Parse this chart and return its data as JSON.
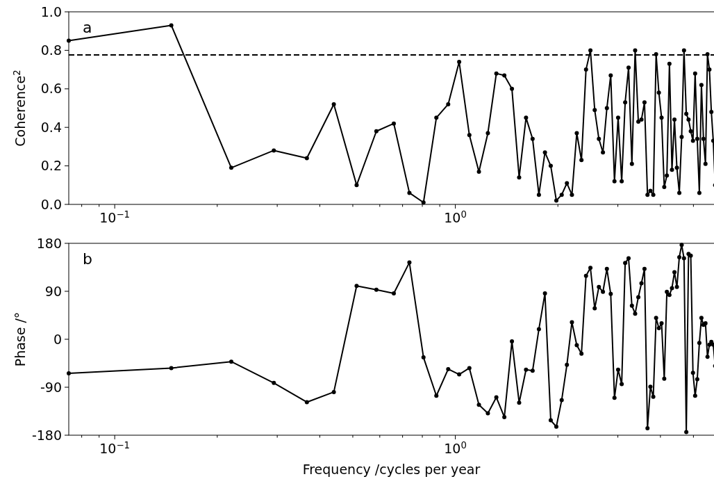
{
  "chart_data": [
    {
      "type": "line",
      "ylabel": "Coherence$^{2}$",
      "annotations": [
        "a"
      ],
      "log": "x",
      "grid": false,
      "marker": "circle",
      "line_style": "solid",
      "x": [
        0.0733,
        0.1466,
        0.2199,
        0.2932,
        0.3665,
        0.4398,
        0.5131,
        0.5864,
        0.6597,
        0.733,
        0.8063,
        0.8796,
        0.9529,
        1.0262,
        1.0995,
        1.1728,
        1.2461,
        1.3194,
        1.3927,
        1.466,
        1.5393,
        1.6126,
        1.6859,
        1.7592,
        1.8325,
        1.9058,
        1.9791,
        2.0524,
        2.1257,
        2.199,
        2.2723,
        2.3456,
        2.4189,
        2.4922,
        2.5655,
        2.6388,
        2.7121,
        2.7854,
        2.8587,
        2.932,
        3.0053,
        3.0786,
        3.1519,
        3.2252,
        3.2985,
        3.3718,
        3.4451,
        3.5184,
        3.5917,
        3.665,
        3.7383,
        3.8116,
        3.8849,
        3.9582,
        4.0315,
        4.1048,
        4.1781,
        4.2514,
        4.3247,
        4.398,
        4.4713,
        4.5446,
        4.6179,
        4.6912,
        4.7645,
        4.8378,
        4.9111,
        4.9844,
        5.0577,
        5.131,
        5.2043,
        5.2776,
        5.3509,
        5.4242,
        5.4975,
        5.5708,
        5.6441,
        5.7174,
        5.7907
      ],
      "series": [
        {
          "color": "#000000",
          "values": [
            0.85,
            0.93,
            0.19,
            0.28,
            0.24,
            0.52,
            0.1,
            0.38,
            0.42,
            0.06,
            0.01,
            0.45,
            0.52,
            0.74,
            0.36,
            0.17,
            0.37,
            0.68,
            0.67,
            0.6,
            0.14,
            0.45,
            0.34,
            0.05,
            0.27,
            0.2,
            0.02,
            0.05,
            0.11,
            0.05,
            0.37,
            0.23,
            0.7,
            0.8,
            0.49,
            0.34,
            0.27,
            0.5,
            0.67,
            0.12,
            0.45,
            0.12,
            0.53,
            0.71,
            0.21,
            0.8,
            0.43,
            0.44,
            0.53,
            0.05,
            0.07,
            0.05,
            0.78,
            0.58,
            0.45,
            0.09,
            0.15,
            0.73,
            0.18,
            0.44,
            0.19,
            0.06,
            0.35,
            0.8,
            0.47,
            0.44,
            0.38,
            0.33,
            0.68,
            0.34,
            0.06,
            0.62,
            0.34,
            0.21,
            0.78,
            0.7,
            0.48,
            0.33,
            0.1
          ]
        }
      ],
      "xlim": [
        0.0733,
        5.8
      ],
      "xticks": [
        {
          "value": 0.08,
          "label": null
        },
        {
          "value": 0.09,
          "label": null
        },
        {
          "value": 0.1,
          "label": "10$^{−1}$"
        },
        {
          "value": 0.2,
          "label": null
        },
        {
          "value": 0.3,
          "label": null
        },
        {
          "value": 0.4,
          "label": null
        },
        {
          "value": 0.5,
          "label": null
        },
        {
          "value": 0.6,
          "label": null
        },
        {
          "value": 0.7,
          "label": null
        },
        {
          "value": 0.8,
          "label": null
        },
        {
          "value": 0.9,
          "label": null
        },
        {
          "value": 1,
          "label": "10$^{0}$"
        },
        {
          "value": 2,
          "label": null
        },
        {
          "value": 3,
          "label": null
        },
        {
          "value": 4,
          "label": null
        },
        {
          "value": 5,
          "label": null
        }
      ],
      "ylim": [
        0,
        1
      ],
      "yticks": [
        {
          "value": 0,
          "label": "0.0"
        },
        {
          "value": 0.2,
          "label": "0.2"
        },
        {
          "value": 0.4,
          "label": "0.4"
        },
        {
          "value": 0.6,
          "label": "0.6"
        },
        {
          "value": 0.8,
          "label": "0.8"
        },
        {
          "value": 1,
          "label": "1.0"
        }
      ],
      "ref_lines": [
        {
          "axis": "y",
          "value": 0.776,
          "color": "#000000",
          "line_style": "dashed"
        }
      ]
    },
    {
      "type": "line",
      "ylabel": "Phase /°",
      "xlabel": "Frequency /cycles per year",
      "annotations": [
        "b"
      ],
      "log": "x",
      "grid": false,
      "marker": "circle",
      "line_style": "solid",
      "x": [
        0.0733,
        0.1466,
        0.2199,
        0.2932,
        0.3665,
        0.4398,
        0.5131,
        0.5864,
        0.6597,
        0.733,
        0.8063,
        0.8796,
        0.9529,
        1.0262,
        1.0995,
        1.1728,
        1.2461,
        1.3194,
        1.3927,
        1.466,
        1.5393,
        1.6126,
        1.6859,
        1.7592,
        1.8325,
        1.9058,
        1.9791,
        2.0524,
        2.1257,
        2.199,
        2.2723,
        2.3456,
        2.4189,
        2.4922,
        2.5655,
        2.6388,
        2.7121,
        2.7854,
        2.8587,
        2.932,
        3.0053,
        3.0786,
        3.1519,
        3.2252,
        3.2985,
        3.3718,
        3.4451,
        3.5184,
        3.5917,
        3.665,
        3.7383,
        3.8116,
        3.8849,
        3.9582,
        4.0315,
        4.1048,
        4.1781,
        4.2514,
        4.3247,
        4.398,
        4.4713,
        4.5446,
        4.6179,
        4.6912,
        4.7645,
        4.8378,
        4.9111,
        4.9844,
        5.0577,
        5.131,
        5.2043,
        5.2776,
        5.3509,
        5.4242,
        5.4975,
        5.5708,
        5.6441,
        5.7174,
        5.7907
      ],
      "series": [
        {
          "color": "#000000",
          "values": [
            -64,
            -54,
            -42,
            -82,
            -118,
            -99,
            100,
            93,
            86,
            144,
            -34,
            -106,
            -56,
            -66,
            -54,
            -123,
            -139,
            -109,
            -146,
            -4,
            -119,
            -57,
            -59,
            19,
            86,
            -152,
            -164,
            -114,
            -48,
            32,
            -11,
            -27,
            119,
            134,
            58,
            98,
            89,
            132,
            85,
            -110,
            -57,
            -84,
            143,
            152,
            63,
            48,
            79,
            105,
            132,
            -167,
            -89,
            -108,
            40,
            21,
            30,
            -74,
            89,
            83,
            96,
            126,
            98,
            154,
            177,
            152,
            -174,
            160,
            157,
            -63,
            -106,
            -75,
            -7,
            40,
            27,
            30,
            -33,
            -10,
            -5,
            -10,
            -50
          ]
        }
      ],
      "xlim": [
        0.0733,
        5.8
      ],
      "xticks": [
        {
          "value": 0.08,
          "label": null
        },
        {
          "value": 0.09,
          "label": null
        },
        {
          "value": 0.1,
          "label": "10$^{−1}$"
        },
        {
          "value": 0.2,
          "label": null
        },
        {
          "value": 0.3,
          "label": null
        },
        {
          "value": 0.4,
          "label": null
        },
        {
          "value": 0.5,
          "label": null
        },
        {
          "value": 0.6,
          "label": null
        },
        {
          "value": 0.7,
          "label": null
        },
        {
          "value": 0.8,
          "label": null
        },
        {
          "value": 0.9,
          "label": null
        },
        {
          "value": 1,
          "label": "10$^{0}$"
        },
        {
          "value": 2,
          "label": null
        },
        {
          "value": 3,
          "label": null
        },
        {
          "value": 4,
          "label": null
        },
        {
          "value": 5,
          "label": null
        }
      ],
      "ylim": [
        -180,
        180
      ],
      "yticks": [
        -180,
        -90,
        0,
        90,
        180
      ]
    }
  ]
}
